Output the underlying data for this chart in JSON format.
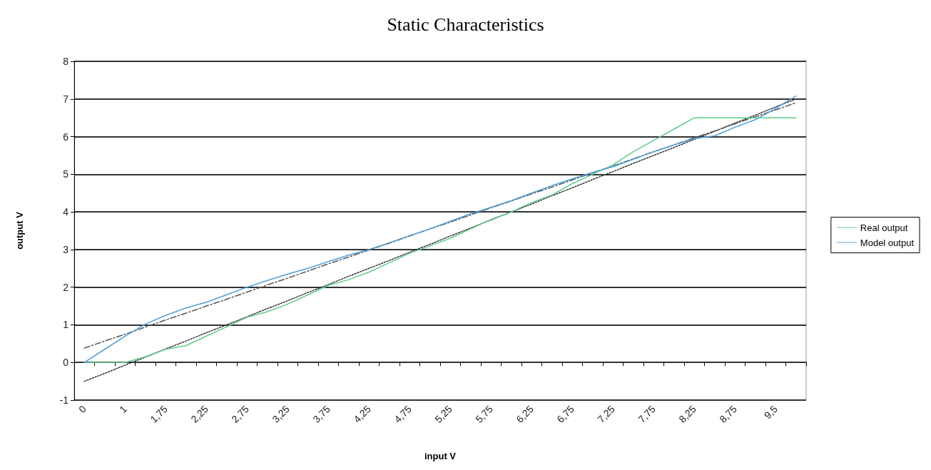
{
  "chart_data": {
    "type": "line",
    "title": "Static Characteristics",
    "xlabel": "input V",
    "ylabel": "output V",
    "categories": [
      "0",
      null,
      "1",
      null,
      "1,75",
      null,
      "2,25",
      null,
      "2,75",
      null,
      "3,25",
      null,
      "3,75",
      null,
      "4,25",
      null,
      "4,75",
      null,
      "5,25",
      null,
      "5,75",
      null,
      "6,25",
      null,
      "6,75",
      null,
      "7,25",
      null,
      "7,75",
      null,
      "8,25",
      null,
      "8,75",
      null,
      "9,5",
      null
    ],
    "series": [
      {
        "name": "Real output",
        "color": "#5dcc8c",
        "values": [
          0,
          0,
          0,
          0.15,
          0.35,
          0.45,
          0.7,
          0.95,
          1.2,
          1.35,
          1.55,
          1.8,
          2.05,
          2.2,
          2.4,
          2.65,
          2.9,
          3.1,
          3.3,
          3.55,
          3.8,
          4.0,
          4.25,
          4.45,
          4.75,
          5.0,
          5.25,
          5.6,
          5.9,
          6.2,
          6.5,
          6.5,
          6.5,
          6.5,
          6.5,
          6.5
        ]
      },
      {
        "name": "Model output",
        "color": "#4f9fd8",
        "values": [
          0,
          0.35,
          0.7,
          1.02,
          1.25,
          1.45,
          1.6,
          1.8,
          2.0,
          2.18,
          2.35,
          2.5,
          2.68,
          2.85,
          3.0,
          3.18,
          3.37,
          3.55,
          3.75,
          3.95,
          4.12,
          4.3,
          4.5,
          4.7,
          4.88,
          5.05,
          5.2,
          5.4,
          5.6,
          5.78,
          5.95,
          6.02,
          6.25,
          6.45,
          6.75,
          7.08
        ]
      },
      {
        "color": "#333333",
        "line_style": "dotted",
        "values": [
          -0.5,
          -0.29,
          -0.07,
          0.14,
          0.36,
          0.57,
          0.79,
          1.0,
          1.21,
          1.43,
          1.64,
          1.86,
          2.07,
          2.29,
          2.5,
          2.71,
          2.93,
          3.14,
          3.36,
          3.57,
          3.79,
          4.0,
          4.21,
          4.43,
          4.64,
          4.86,
          5.07,
          5.29,
          5.5,
          5.71,
          5.93,
          6.14,
          6.36,
          6.57,
          6.79,
          7.0
        ]
      },
      {
        "color": "#555555",
        "line_style": "dashed",
        "values": [
          0.38,
          0.57,
          0.75,
          0.94,
          1.13,
          1.31,
          1.5,
          1.68,
          1.87,
          2.06,
          2.24,
          2.43,
          2.62,
          2.8,
          2.99,
          3.17,
          3.36,
          3.55,
          3.73,
          3.92,
          4.11,
          4.29,
          4.48,
          4.66,
          4.85,
          5.04,
          5.22,
          5.41,
          5.6,
          5.78,
          5.97,
          6.15,
          6.34,
          6.53,
          6.71,
          6.9
        ]
      }
    ],
    "ylim": [
      -1,
      8
    ],
    "yticks": [
      -1,
      0,
      1,
      2,
      3,
      4,
      5,
      6,
      7,
      8
    ],
    "grid": "y",
    "legend": "right",
    "marker": "none"
  }
}
